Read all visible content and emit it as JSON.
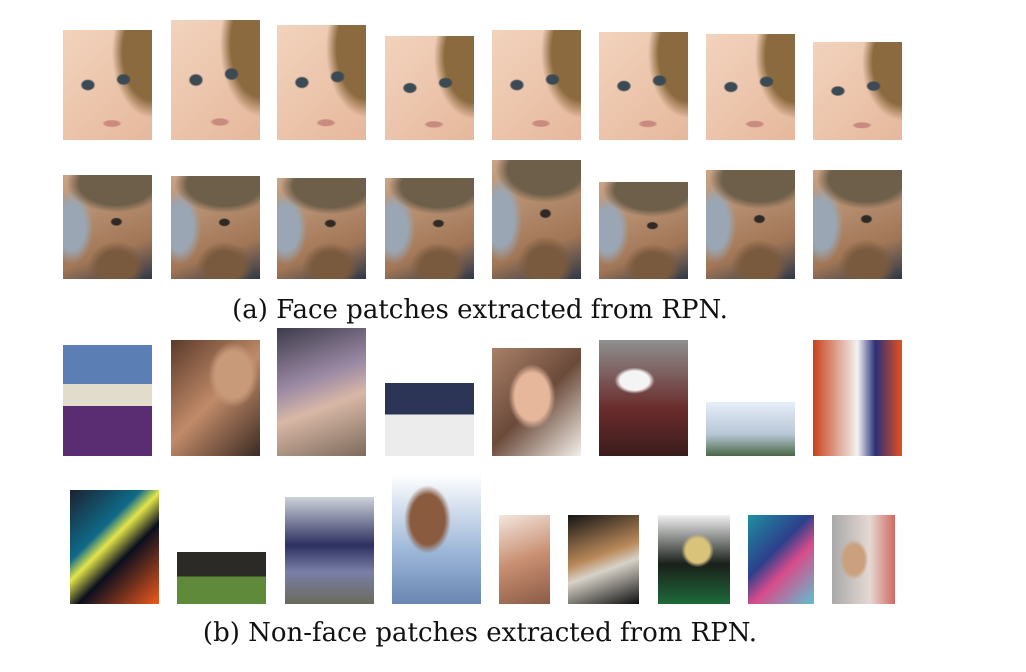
{
  "captions": {
    "a": "(a) Face patches extracted from RPN.",
    "b": "(b) Non-face patches extracted from RPN."
  },
  "patches": {
    "face_row1": [
      "face-patch",
      "face-patch",
      "face-patch",
      "face-patch",
      "face-patch",
      "face-patch",
      "face-patch",
      "face-patch"
    ],
    "face_row2": [
      "face-patch",
      "face-patch",
      "face-patch",
      "face-patch",
      "face-patch",
      "face-patch",
      "face-patch",
      "face-patch"
    ],
    "nonface_row1": [
      "non-face-patch",
      "non-face-patch",
      "non-face-patch",
      "non-face-patch",
      "non-face-patch",
      "non-face-patch",
      "non-face-patch",
      "non-face-patch"
    ],
    "nonface_row2": [
      "non-face-patch",
      "non-face-patch",
      "non-face-patch",
      "non-face-patch",
      "non-face-patch",
      "non-face-patch",
      "non-face-patch",
      "non-face-patch",
      "non-face-patch"
    ]
  }
}
